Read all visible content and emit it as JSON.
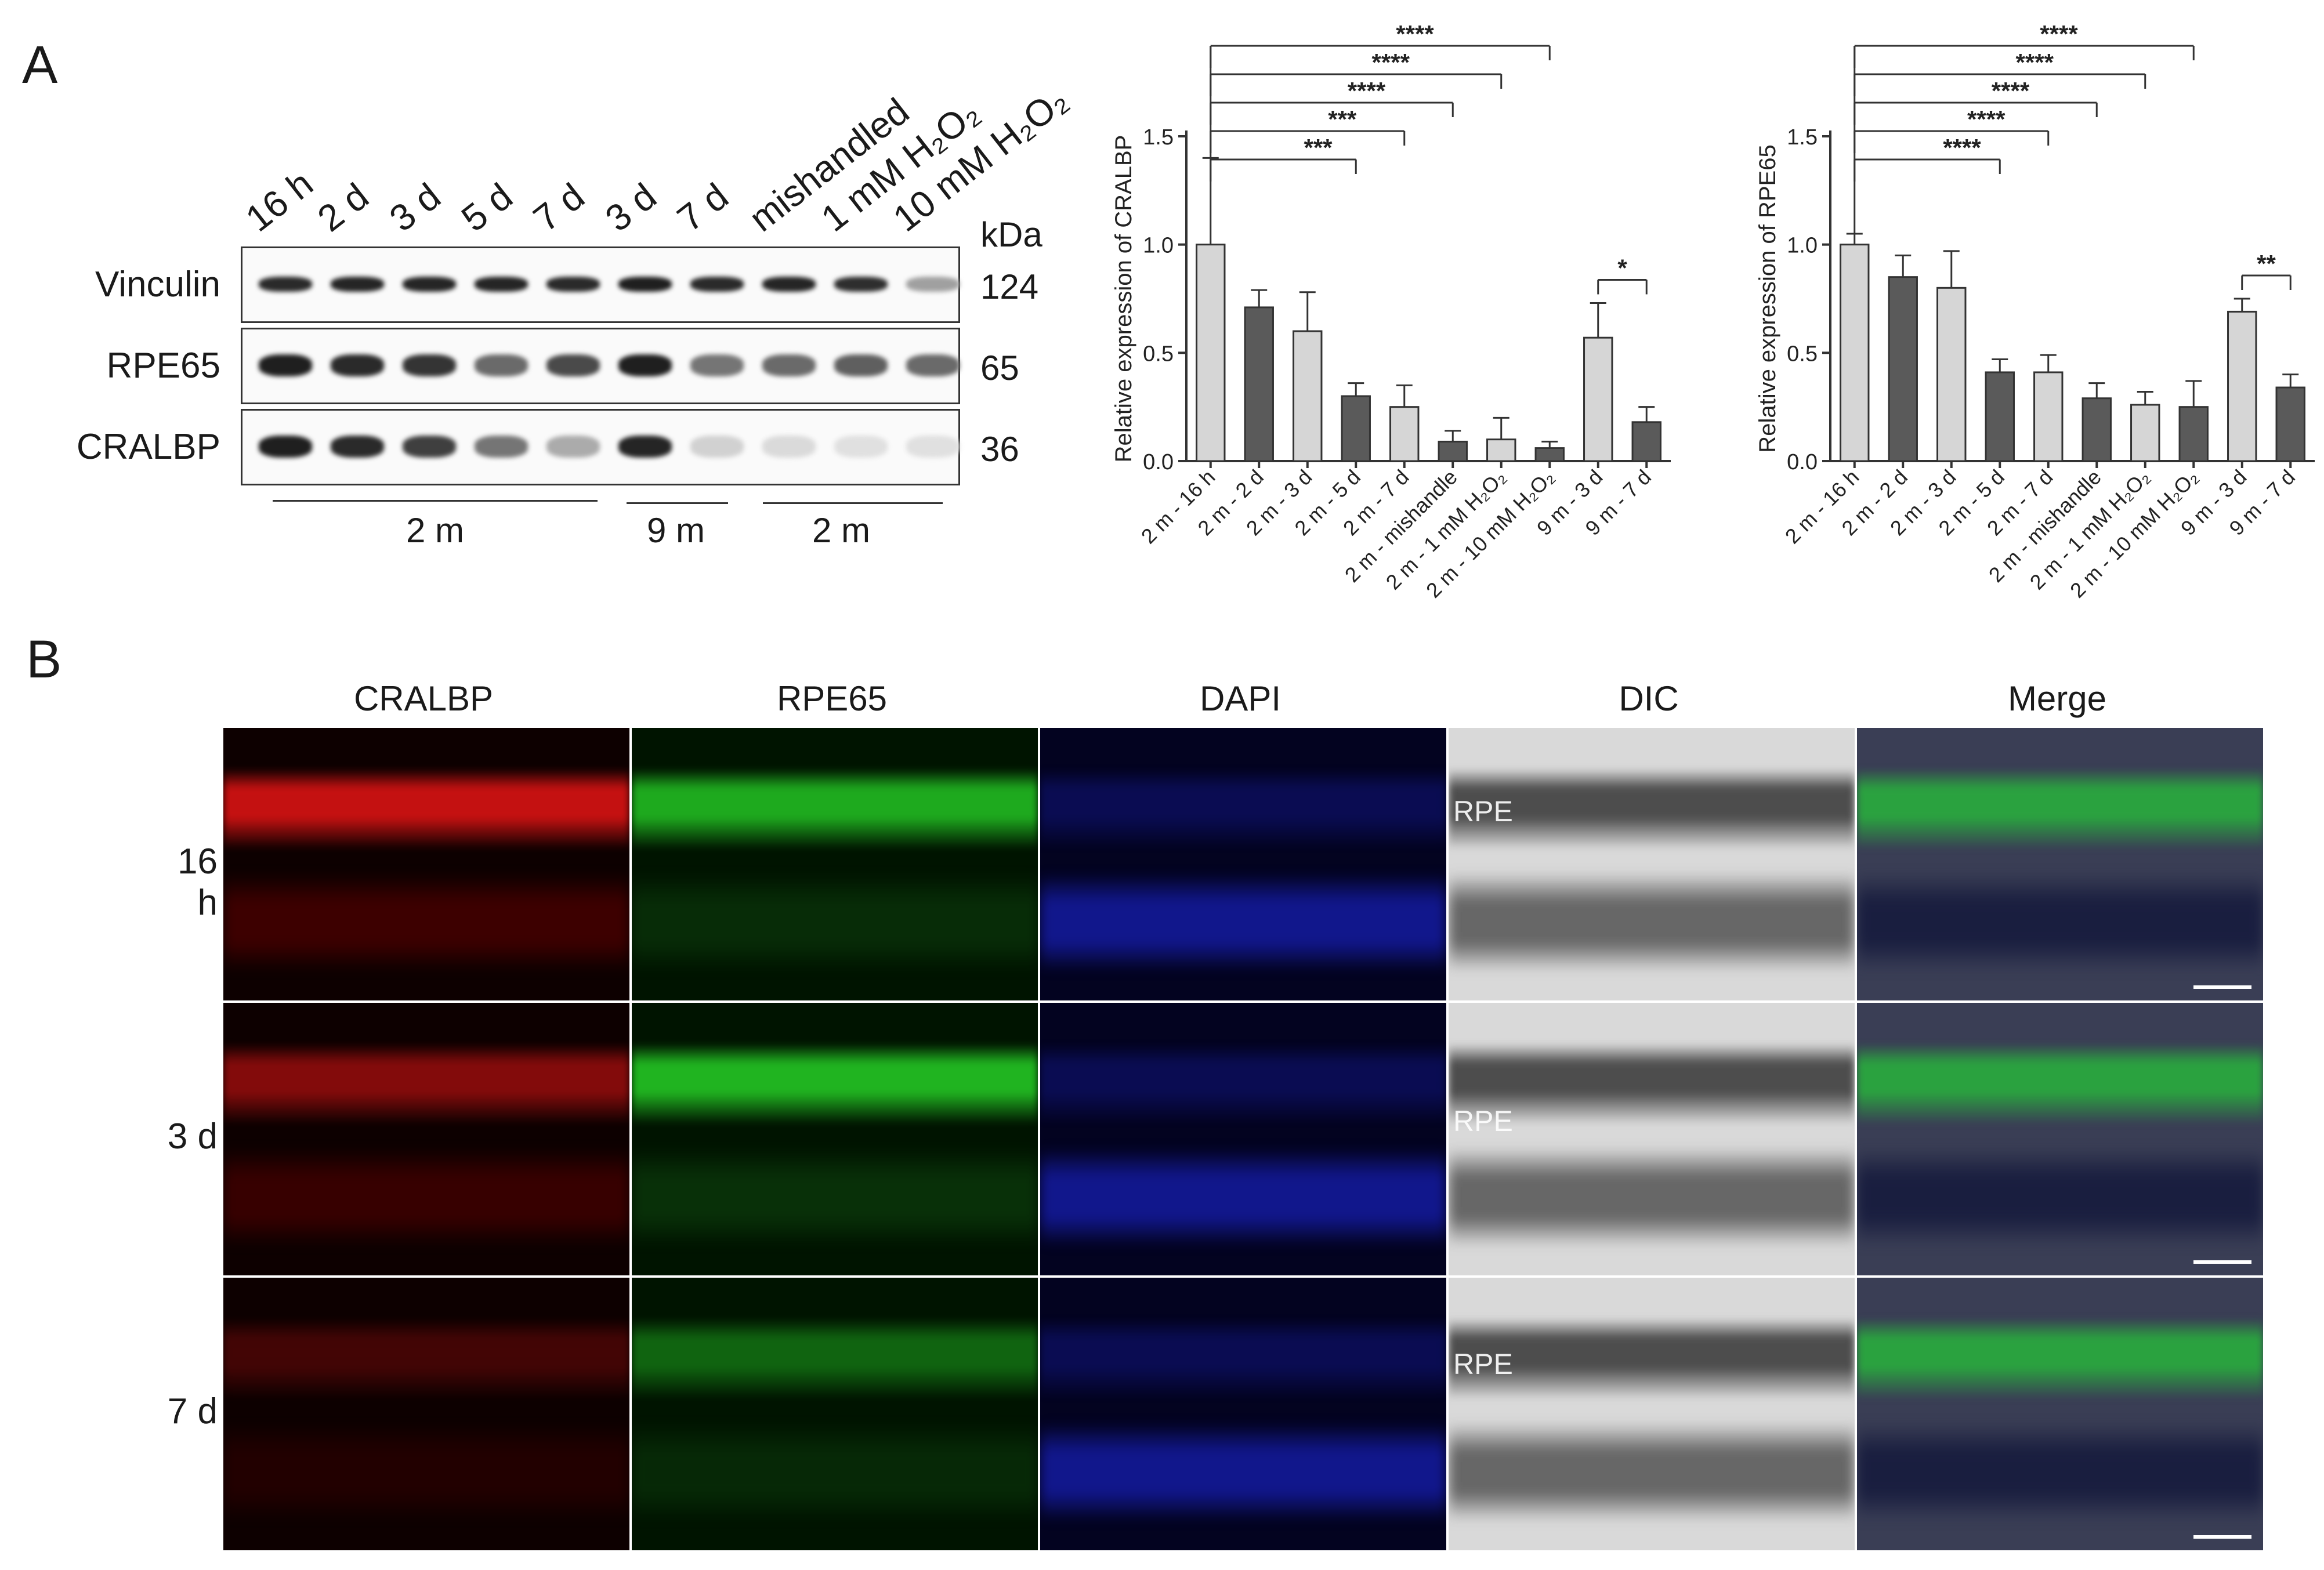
{
  "panelA": {
    "letter": "A",
    "lanes": [
      "16 h",
      "2 d",
      "3 d",
      "5 d",
      "7 d",
      "3 d",
      "7 d",
      "mishandled",
      "1 mM H₂O₂",
      "10 mM H₂O₂"
    ],
    "kda_header": "kDa",
    "rows": [
      {
        "label": "Vinculin",
        "kda": "124",
        "intensity": [
          0.9,
          0.92,
          0.92,
          0.92,
          0.9,
          0.95,
          0.9,
          0.92,
          0.88,
          0.35
        ]
      },
      {
        "label": "RPE65",
        "kda": "65",
        "intensity": [
          0.95,
          0.9,
          0.85,
          0.6,
          0.75,
          0.95,
          0.55,
          0.6,
          0.65,
          0.6
        ]
      },
      {
        "label": "CRALBP",
        "kda": "36",
        "intensity": [
          0.95,
          0.9,
          0.8,
          0.55,
          0.3,
          0.92,
          0.12,
          0.08,
          0.05,
          0.05
        ]
      }
    ],
    "groups": [
      "2 m",
      "9 m",
      "2 m"
    ]
  },
  "chart_data": [
    {
      "type": "bar",
      "ylabel": "Relative expression of CRALBP",
      "categories": [
        "2 m - 16 h",
        "2 m - 2 d",
        "2 m - 3 d",
        "2 m - 5 d",
        "2 m - 7 d",
        "2 m - mishandle",
        "2 m - 1 mM H₂O₂",
        "2 m - 10 mM H₂O₂",
        "9 m - 3 d",
        "9 m - 7 d"
      ],
      "values": [
        1.0,
        0.71,
        0.6,
        0.3,
        0.25,
        0.09,
        0.1,
        0.06,
        0.57,
        0.18
      ],
      "errors": [
        0.4,
        0.08,
        0.18,
        0.06,
        0.1,
        0.05,
        0.1,
        0.03,
        0.16,
        0.07
      ],
      "bar_colors": [
        "#d6d6d6",
        "#5a5a5a",
        "#d6d6d6",
        "#5a5a5a",
        "#d6d6d6",
        "#5a5a5a",
        "#d6d6d6",
        "#5a5a5a",
        "#d6d6d6",
        "#5a5a5a"
      ],
      "ylim": [
        0,
        1.5
      ],
      "yticks": [
        "0.0",
        "0.5",
        "1.0",
        "1.5"
      ],
      "brackets": [
        {
          "from": 0,
          "to": 3,
          "label": "***"
        },
        {
          "from": 0,
          "to": 4,
          "label": "***"
        },
        {
          "from": 0,
          "to": 5,
          "label": "****"
        },
        {
          "from": 0,
          "to": 6,
          "label": "****"
        },
        {
          "from": 0,
          "to": 7,
          "label": "****"
        },
        {
          "from": 8,
          "to": 9,
          "label": "*"
        }
      ]
    },
    {
      "type": "bar",
      "ylabel": "Relative expression of RPE65",
      "categories": [
        "2 m - 16 h",
        "2 m - 2 d",
        "2 m - 3 d",
        "2 m - 5 d",
        "2 m - 7 d",
        "2 m - mishandle",
        "2 m - 1 mM H₂O₂",
        "2 m - 10 mM H₂O₂",
        "9 m - 3 d",
        "9 m - 7 d"
      ],
      "values": [
        1.0,
        0.85,
        0.8,
        0.41,
        0.41,
        0.29,
        0.26,
        0.25,
        0.69,
        0.34
      ],
      "errors": [
        0.05,
        0.1,
        0.17,
        0.06,
        0.08,
        0.07,
        0.06,
        0.12,
        0.06,
        0.06
      ],
      "bar_colors": [
        "#d6d6d6",
        "#5a5a5a",
        "#d6d6d6",
        "#5a5a5a",
        "#d6d6d6",
        "#5a5a5a",
        "#d6d6d6",
        "#5a5a5a",
        "#d6d6d6",
        "#5a5a5a"
      ],
      "ylim": [
        0,
        1.5
      ],
      "yticks": [
        "0.0",
        "0.5",
        "1.0",
        "1.5"
      ],
      "brackets": [
        {
          "from": 0,
          "to": 3,
          "label": "****"
        },
        {
          "from": 0,
          "to": 4,
          "label": "****"
        },
        {
          "from": 0,
          "to": 5,
          "label": "****"
        },
        {
          "from": 0,
          "to": 6,
          "label": "****"
        },
        {
          "from": 0,
          "to": 7,
          "label": "****"
        },
        {
          "from": 8,
          "to": 9,
          "label": "**"
        }
      ]
    }
  ],
  "panelB": {
    "letter": "B",
    "columns": [
      "CRALBP",
      "RPE65",
      "DAPI",
      "DIC",
      "Merge"
    ],
    "rows": [
      "16 h",
      "3 d",
      "7 d"
    ],
    "rpe_tag": "RPE"
  }
}
